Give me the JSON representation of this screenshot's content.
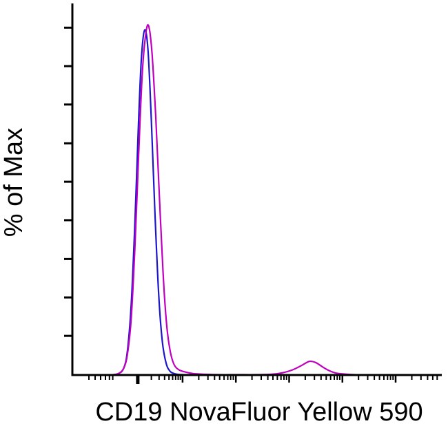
{
  "page": {
    "background": "#ffffff"
  },
  "chart_data": {
    "type": "line",
    "chart_kind": "flow-cytometry-histogram-overlay",
    "title": "",
    "xlabel": "CD19 NovaFluor Yellow 590",
    "ylabel": "% of Max",
    "x_axis": {
      "scale": "biexponential",
      "tick_labels_visible": false
    },
    "y_axis": {
      "tick_labels_visible": false
    },
    "ylim": [
      0,
      106
    ],
    "legend": "none",
    "grid": false,
    "axis_color": "#000000",
    "series": [
      {
        "name": "blue-curve",
        "color": "#1c17c9",
        "points": [
          [
            0.0,
            0
          ],
          [
            0.06,
            0
          ],
          [
            0.1,
            0
          ],
          [
            0.125,
            0.4
          ],
          [
            0.14,
            2
          ],
          [
            0.15,
            7
          ],
          [
            0.16,
            20
          ],
          [
            0.17,
            43
          ],
          [
            0.18,
            72
          ],
          [
            0.188,
            91
          ],
          [
            0.197,
            99
          ],
          [
            0.206,
            93
          ],
          [
            0.215,
            73
          ],
          [
            0.225,
            46
          ],
          [
            0.235,
            23
          ],
          [
            0.245,
            9.5
          ],
          [
            0.255,
            3.5
          ],
          [
            0.265,
            1.2
          ],
          [
            0.278,
            0.4
          ],
          [
            0.3,
            0.1
          ],
          [
            0.35,
            0
          ],
          [
            0.5,
            0
          ],
          [
            0.7,
            0
          ],
          [
            0.9,
            0
          ],
          [
            1.0,
            0
          ]
        ]
      },
      {
        "name": "magenta-curve",
        "color": "#bf00bf",
        "points": [
          [
            0.0,
            0
          ],
          [
            0.06,
            0
          ],
          [
            0.1,
            0
          ],
          [
            0.125,
            0.4
          ],
          [
            0.14,
            2
          ],
          [
            0.15,
            6
          ],
          [
            0.16,
            16
          ],
          [
            0.17,
            36
          ],
          [
            0.18,
            62
          ],
          [
            0.19,
            86
          ],
          [
            0.2,
            98
          ],
          [
            0.208,
            100
          ],
          [
            0.217,
            92
          ],
          [
            0.227,
            74
          ],
          [
            0.237,
            51
          ],
          [
            0.247,
            29
          ],
          [
            0.257,
            14
          ],
          [
            0.267,
            6.5
          ],
          [
            0.277,
            3
          ],
          [
            0.29,
            1.5
          ],
          [
            0.31,
            0.8
          ],
          [
            0.33,
            0.4
          ],
          [
            0.36,
            0.2
          ],
          [
            0.4,
            0.1
          ],
          [
            0.45,
            0.1
          ],
          [
            0.5,
            0.1
          ],
          [
            0.54,
            0.2
          ],
          [
            0.57,
            0.6
          ],
          [
            0.6,
            1.5
          ],
          [
            0.625,
            2.8
          ],
          [
            0.645,
            3.9
          ],
          [
            0.662,
            3.6
          ],
          [
            0.68,
            2.4
          ],
          [
            0.7,
            1.2
          ],
          [
            0.72,
            0.5
          ],
          [
            0.75,
            0.2
          ],
          [
            0.8,
            0
          ],
          [
            0.9,
            0
          ],
          [
            1.0,
            0
          ]
        ]
      }
    ],
    "x_ticks": {
      "bold": [
        0.178
      ],
      "major": [
        0.3,
        0.445,
        0.59,
        0.735,
        0.88
      ],
      "minor": [
        0.045,
        0.062,
        0.077,
        0.09,
        0.101,
        0.11,
        0.215,
        0.236,
        0.251,
        0.263,
        0.273,
        0.281,
        0.288,
        0.294,
        0.344,
        0.369,
        0.387,
        0.401,
        0.413,
        0.423,
        0.431,
        0.438,
        0.489,
        0.514,
        0.532,
        0.546,
        0.558,
        0.568,
        0.576,
        0.583,
        0.634,
        0.659,
        0.677,
        0.691,
        0.703,
        0.713,
        0.721,
        0.728,
        0.779,
        0.804,
        0.822,
        0.836,
        0.848,
        0.858,
        0.866,
        0.873,
        0.924,
        0.949,
        0.967,
        0.981,
        0.993
      ]
    },
    "y_ticks": [
      0.06,
      0.164,
      0.268,
      0.373,
      0.477,
      0.581,
      0.686,
      0.79,
      0.894
    ]
  }
}
